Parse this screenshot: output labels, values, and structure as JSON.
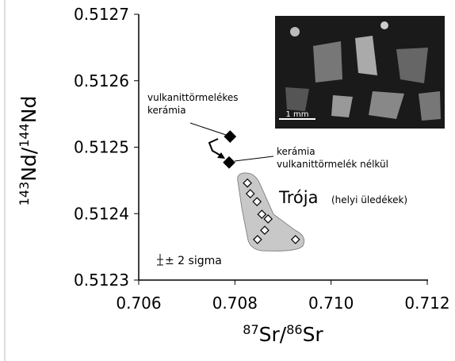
{
  "chart_data": {
    "type": "scatter",
    "xlabel": [
      {
        "text": "87",
        "sup": true
      },
      {
        "text": "Sr/",
        "sup": false
      },
      {
        "text": "86",
        "sup": true
      },
      {
        "text": "Sr",
        "sup": false
      }
    ],
    "ylabel": [
      {
        "text": "143",
        "sup": true
      },
      {
        "text": "Nd/",
        "sup": false
      },
      {
        "text": "144",
        "sup": true
      },
      {
        "text": "Nd",
        "sup": false
      }
    ],
    "xlim": [
      0.706,
      0.712
    ],
    "xticks": [
      0.706,
      0.708,
      {
        "value": 0.71,
        "label": "0.710"
      },
      0.712
    ],
    "ylim": [
      0.5123,
      0.5127
    ],
    "yticks": [
      0.5123,
      0.5124,
      0.5125,
      0.5126,
      0.5127
    ],
    "series": [
      {
        "marker": "filled-diamond",
        "color": "#000000",
        "x": [
          0.7079,
          0.70788
        ],
        "values": [
          0.512516,
          0.512477
        ]
      },
      {
        "marker": "open-diamond",
        "color": "#ffffff",
        "x": [
          0.70826,
          0.70832,
          0.70846,
          0.70856,
          0.70869,
          0.70862,
          0.70847,
          0.70926
        ],
        "values": [
          0.512446,
          0.51243,
          0.512418,
          0.512399,
          0.512392,
          0.512375,
          0.512361,
          0.512361
        ]
      }
    ],
    "annotations": {
      "ceramic_volcanic": [
        "vulkanittörmelékes",
        "kerámia"
      ],
      "ceramic_plain": [
        "kerámia",
        "vulkanittörmelék nélkül"
      ],
      "troy": "Trója",
      "troy_note": "(helyi üledékek)",
      "error": "± 2 sigma",
      "scale": "1 mm"
    }
  }
}
